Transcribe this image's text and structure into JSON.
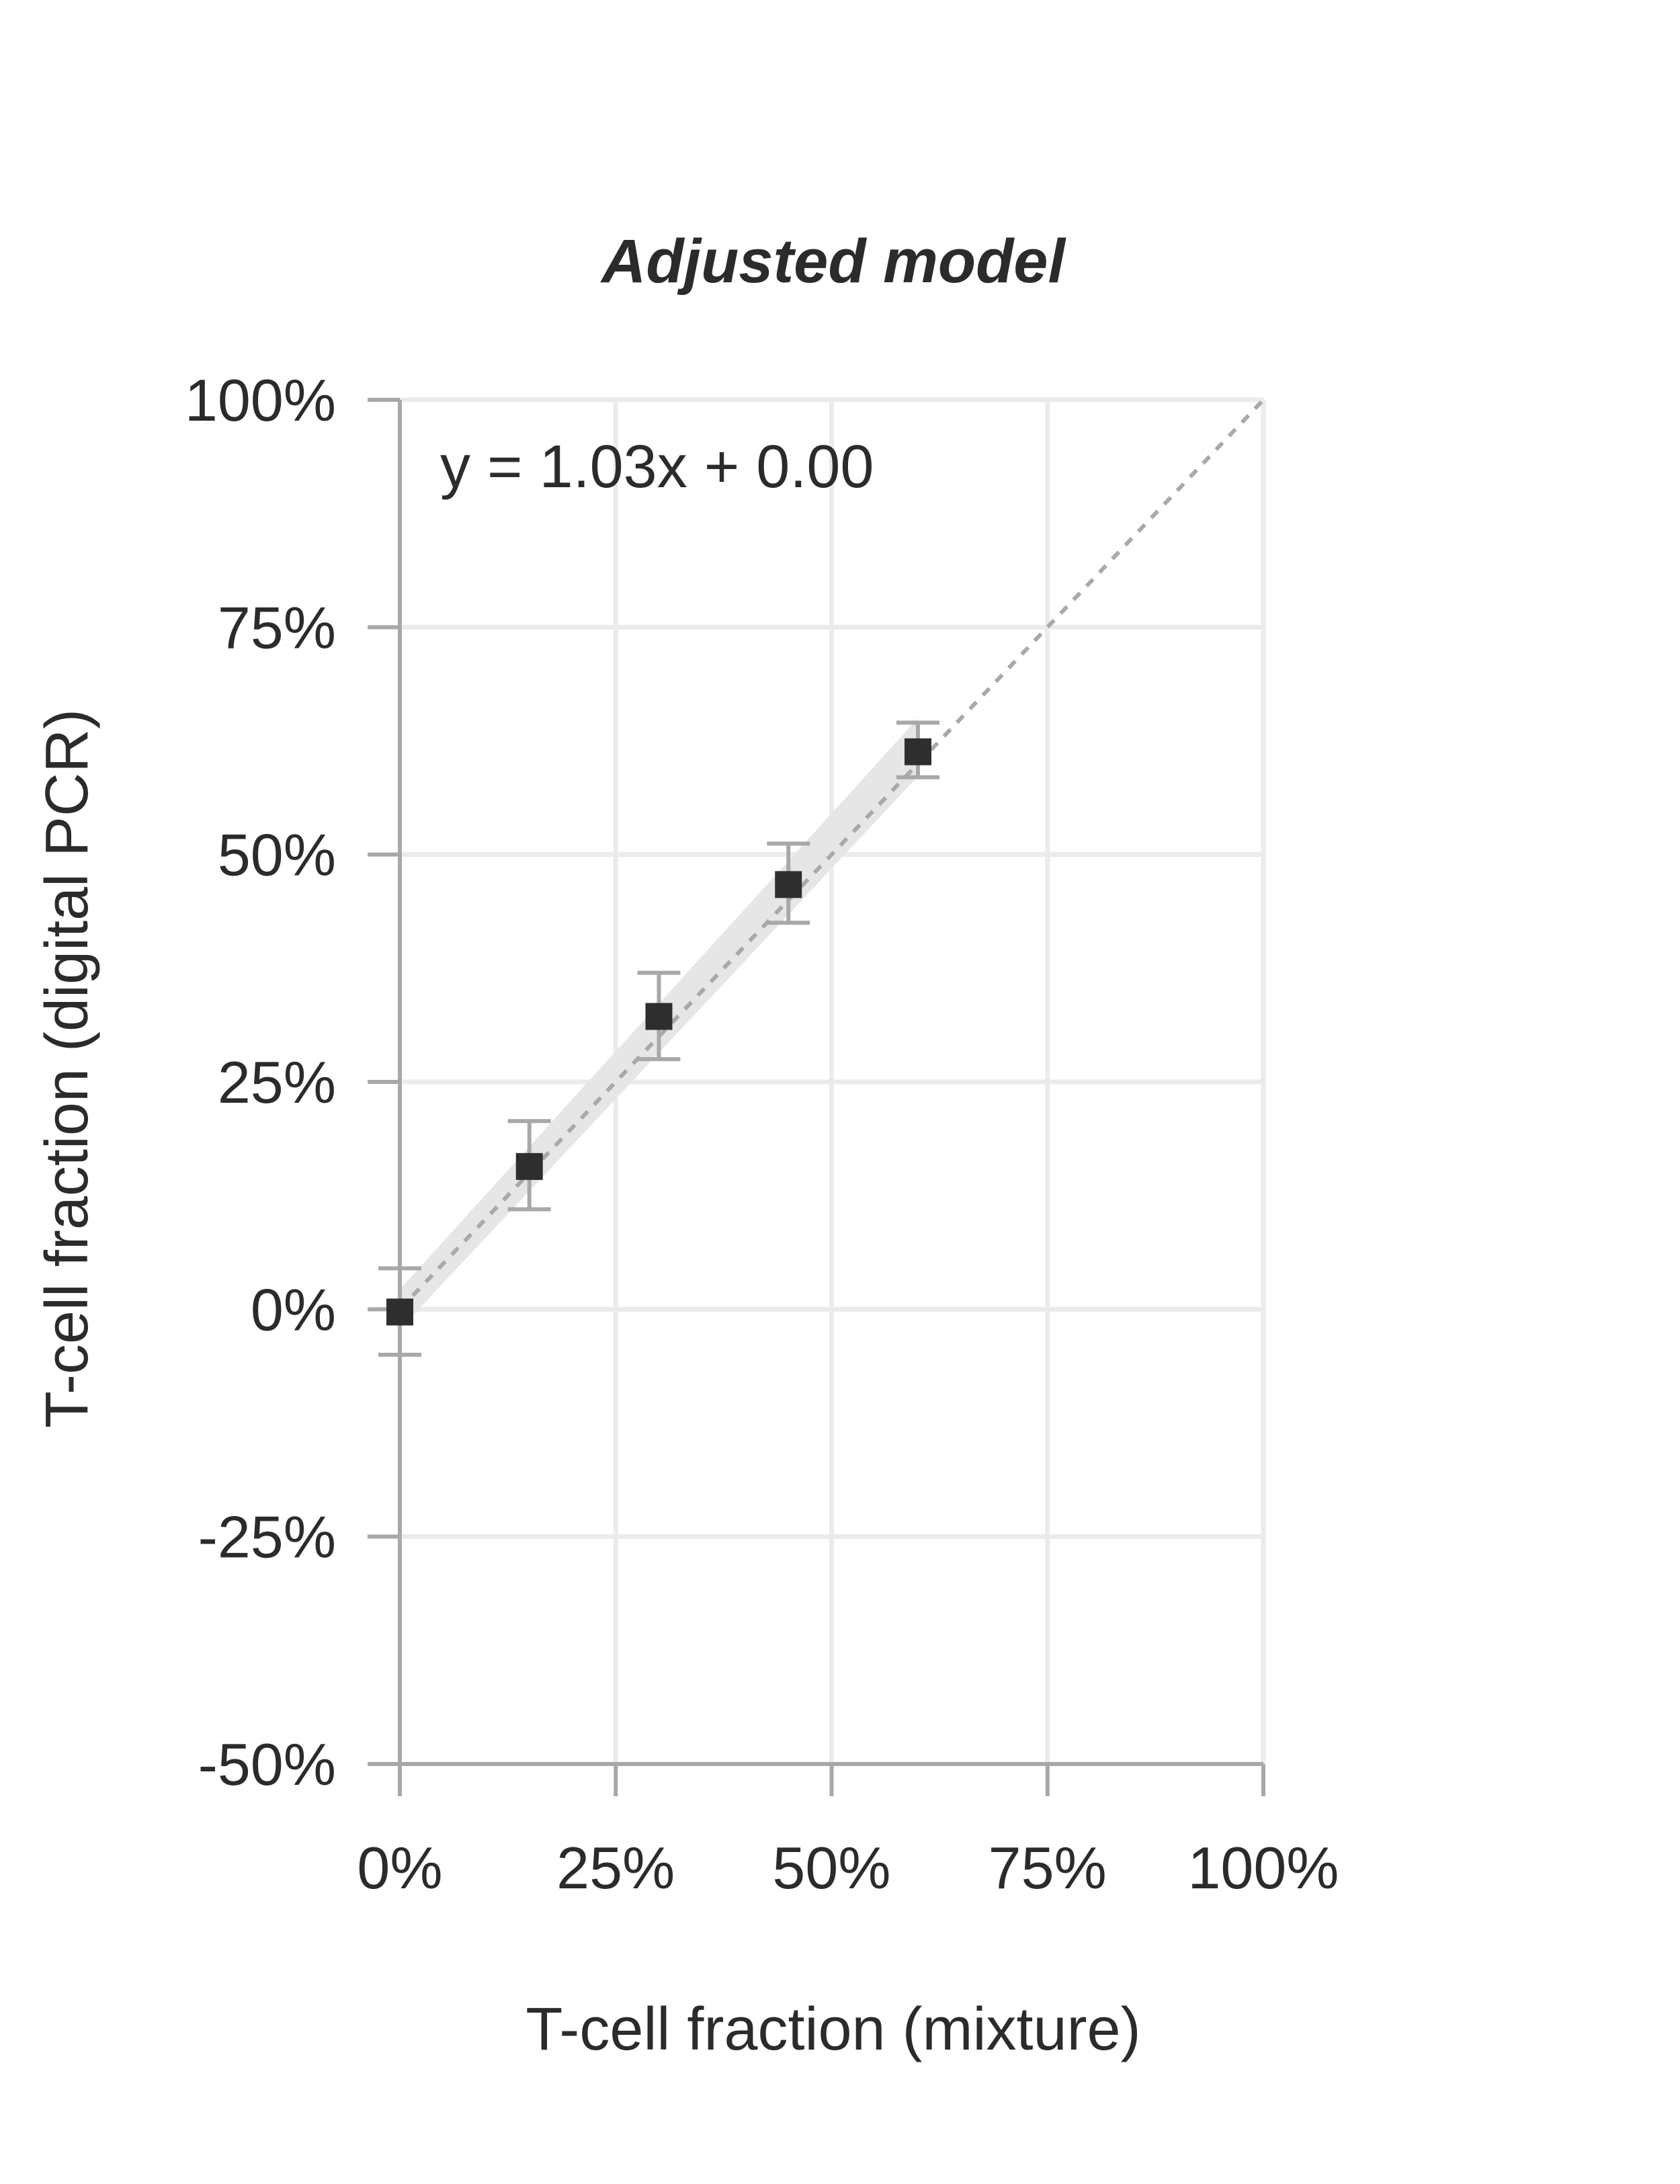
{
  "chart_data": {
    "type": "scatter",
    "title": "Adjusted model",
    "xlabel": "T-cell fraction (mixture)",
    "ylabel": "T-cell fraction (digital PCR)",
    "xlim": [
      0,
      1
    ],
    "ylim": [
      -0.5,
      1
    ],
    "x_ticks": [
      {
        "value": 0,
        "label": "0%"
      },
      {
        "value": 0.25,
        "label": "25%"
      },
      {
        "value": 0.5,
        "label": "50%"
      },
      {
        "value": 0.75,
        "label": "75%"
      },
      {
        "value": 1,
        "label": "100%"
      }
    ],
    "y_ticks": [
      {
        "value": -0.5,
        "label": "-50%"
      },
      {
        "value": -0.25,
        "label": "-25%"
      },
      {
        "value": 0,
        "label": "0%"
      },
      {
        "value": 0.25,
        "label": "25%"
      },
      {
        "value": 0.5,
        "label": "50%"
      },
      {
        "value": 0.75,
        "label": "75%"
      },
      {
        "value": 1,
        "label": "100%"
      }
    ],
    "grid": true,
    "points": [
      {
        "x": 0.0,
        "y": -0.003,
        "err_low": -0.05,
        "err_high": 0.045
      },
      {
        "x": 0.15,
        "y": 0.157,
        "err_low": 0.11,
        "err_high": 0.207
      },
      {
        "x": 0.3,
        "y": 0.322,
        "err_low": 0.275,
        "err_high": 0.37
      },
      {
        "x": 0.45,
        "y": 0.467,
        "err_low": 0.425,
        "err_high": 0.512
      },
      {
        "x": 0.6,
        "y": 0.613,
        "err_low": 0.585,
        "err_high": 0.645
      }
    ],
    "fit": {
      "slope": 1.03,
      "intercept": 0.0,
      "x_range": [
        0,
        0.6
      ],
      "band_halfwidth": [
        0.022,
        0.032
      ]
    },
    "identity_line": {
      "x_range": [
        0,
        1
      ]
    },
    "annotation": "y = 1.03x + 0.00",
    "colors": {
      "point": "#2e2e2e",
      "grid": "#ebebeb",
      "axis": "#a8a8a8",
      "band": "#e6e6e6",
      "identity": "#a9a9a9",
      "error_bar": "#a8a8a8"
    }
  }
}
